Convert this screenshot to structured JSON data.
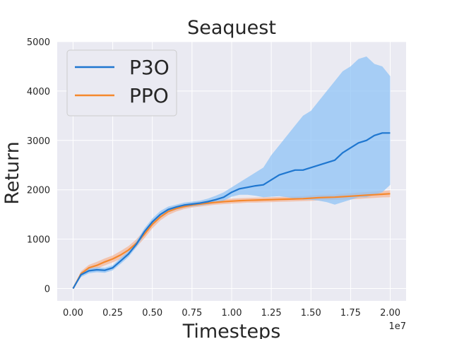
{
  "chart_data": {
    "type": "line",
    "title": "Seaquest",
    "xlabel": "Timesteps",
    "ylabel": "Return",
    "x_scale_label": "1e7",
    "xlim": [
      -0.1,
      2.1
    ],
    "ylim": [
      -250,
      5000
    ],
    "x_ticks": [
      0.0,
      0.25,
      0.5,
      0.75,
      1.0,
      1.25,
      1.5,
      1.75,
      2.0
    ],
    "x_tick_labels": [
      "0.00",
      "0.25",
      "0.50",
      "0.75",
      "1.00",
      "1.25",
      "1.50",
      "1.75",
      "2.00"
    ],
    "y_ticks": [
      0,
      1000,
      2000,
      3000,
      4000,
      5000
    ],
    "y_tick_labels": [
      "0",
      "1000",
      "2000",
      "3000",
      "4000",
      "5000"
    ],
    "grid": true,
    "legend_position": "top-left",
    "series": [
      {
        "name": "P3O",
        "color": "#1f77d0",
        "band_color": "#8fc3f5",
        "x": [
          0.0,
          0.05,
          0.1,
          0.15,
          0.2,
          0.25,
          0.3,
          0.35,
          0.4,
          0.45,
          0.5,
          0.55,
          0.6,
          0.65,
          0.7,
          0.75,
          0.8,
          0.85,
          0.9,
          0.95,
          1.0,
          1.05,
          1.1,
          1.15,
          1.2,
          1.25,
          1.3,
          1.35,
          1.4,
          1.45,
          1.5,
          1.55,
          1.6,
          1.65,
          1.7,
          1.75,
          1.8,
          1.85,
          1.9,
          1.95,
          2.0
        ],
        "y": [
          0,
          280,
          360,
          380,
          370,
          420,
          560,
          700,
          900,
          1150,
          1350,
          1500,
          1600,
          1650,
          1690,
          1710,
          1730,
          1760,
          1800,
          1850,
          1950,
          2020,
          2050,
          2080,
          2100,
          2200,
          2300,
          2350,
          2400,
          2400,
          2450,
          2500,
          2550,
          2600,
          2750,
          2850,
          2950,
          3000,
          3100,
          3150,
          3150
        ],
        "lower": [
          0,
          230,
          310,
          330,
          320,
          370,
          500,
          640,
          840,
          1080,
          1280,
          1430,
          1540,
          1600,
          1640,
          1660,
          1680,
          1700,
          1740,
          1780,
          1860,
          1900,
          1900,
          1880,
          1850,
          1860,
          1870,
          1850,
          1820,
          1800,
          1800,
          1780,
          1750,
          1700,
          1750,
          1800,
          1850,
          1850,
          1900,
          1950,
          2100
        ],
        "upper": [
          0,
          330,
          410,
          430,
          420,
          470,
          620,
          760,
          960,
          1220,
          1420,
          1570,
          1660,
          1700,
          1740,
          1760,
          1780,
          1820,
          1880,
          1950,
          2050,
          2150,
          2250,
          2350,
          2450,
          2700,
          2900,
          3100,
          3300,
          3500,
          3600,
          3800,
          4000,
          4200,
          4400,
          4500,
          4650,
          4700,
          4550,
          4500,
          4300
        ]
      },
      {
        "name": "PPO",
        "color": "#f5882d",
        "band_color": "#f4b79a",
        "x": [
          0.0,
          0.05,
          0.1,
          0.15,
          0.2,
          0.25,
          0.3,
          0.35,
          0.4,
          0.45,
          0.5,
          0.55,
          0.6,
          0.65,
          0.7,
          0.75,
          0.8,
          0.85,
          0.9,
          0.95,
          1.0,
          1.05,
          1.1,
          1.15,
          1.2,
          1.25,
          1.3,
          1.35,
          1.4,
          1.45,
          1.5,
          1.55,
          1.6,
          1.65,
          1.7,
          1.75,
          1.8,
          1.85,
          1.9,
          1.95,
          2.0
        ],
        "y": [
          0,
          300,
          420,
          470,
          540,
          600,
          680,
          780,
          920,
          1100,
          1300,
          1450,
          1560,
          1620,
          1660,
          1690,
          1710,
          1730,
          1745,
          1760,
          1770,
          1780,
          1785,
          1790,
          1795,
          1800,
          1805,
          1810,
          1815,
          1820,
          1830,
          1840,
          1845,
          1850,
          1860,
          1870,
          1880,
          1890,
          1900,
          1910,
          1920
        ],
        "lower": [
          0,
          250,
          360,
          400,
          470,
          530,
          600,
          700,
          840,
          1020,
          1220,
          1380,
          1490,
          1560,
          1610,
          1640,
          1660,
          1680,
          1700,
          1710,
          1720,
          1730,
          1740,
          1740,
          1745,
          1750,
          1755,
          1760,
          1765,
          1770,
          1775,
          1785,
          1790,
          1795,
          1800,
          1805,
          1815,
          1825,
          1835,
          1845,
          1850
        ],
        "upper": [
          0,
          350,
          480,
          540,
          610,
          670,
          760,
          860,
          1000,
          1180,
          1380,
          1520,
          1630,
          1680,
          1710,
          1740,
          1760,
          1780,
          1790,
          1810,
          1820,
          1830,
          1835,
          1840,
          1845,
          1850,
          1855,
          1860,
          1865,
          1870,
          1885,
          1895,
          1900,
          1905,
          1920,
          1930,
          1945,
          1955,
          1965,
          1975,
          1990
        ]
      }
    ]
  }
}
